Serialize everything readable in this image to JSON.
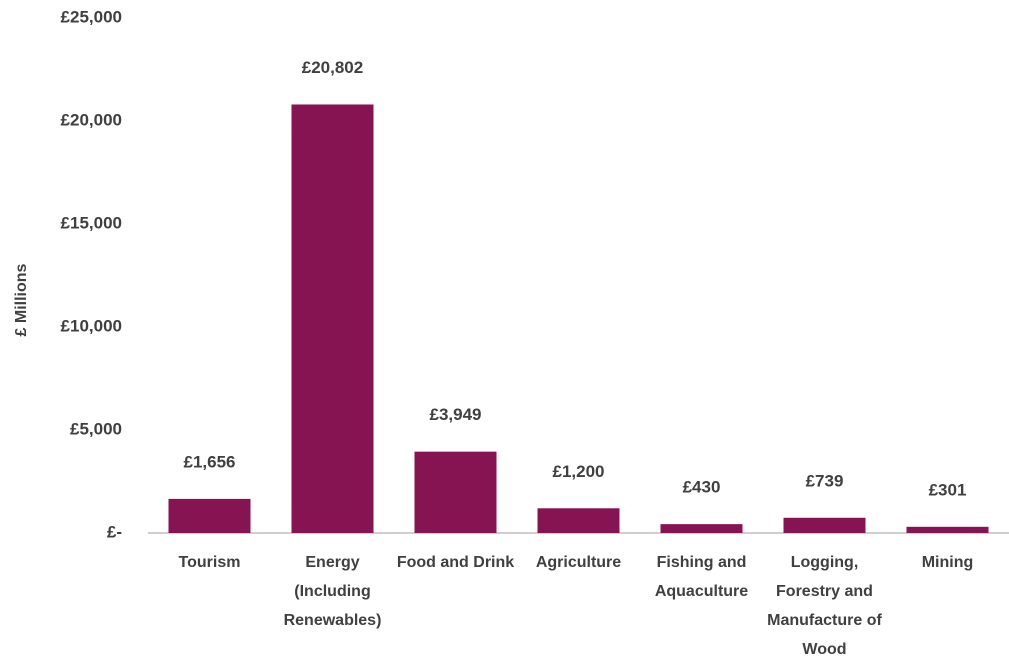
{
  "chart_data": {
    "type": "bar",
    "y_axis_label": "£ Millions",
    "categories": [
      "Tourism",
      "Energy (Including Renewables)",
      "Food and Drink",
      "Agriculture",
      "Fishing and Aquaculture",
      "Logging, Forestry and Manufacture of Wood",
      "Mining"
    ],
    "values": [
      1656,
      20802,
      3949,
      1200,
      430,
      739,
      301
    ],
    "value_labels": [
      "£1,656",
      "£20,802",
      "£3,949",
      "£1,200",
      "£430",
      "£739",
      "£301"
    ],
    "color": "#861453",
    "ylim": [
      0,
      25000
    ],
    "yticks": [
      {
        "value": 0,
        "label": "£-"
      },
      {
        "value": 5000,
        "label": "£5,000"
      },
      {
        "value": 10000,
        "label": "£10,000"
      },
      {
        "value": 15000,
        "label": "£15,000"
      },
      {
        "value": 20000,
        "label": "£20,000"
      },
      {
        "value": 25000,
        "label": "£25,000"
      }
    ],
    "grid": false
  }
}
